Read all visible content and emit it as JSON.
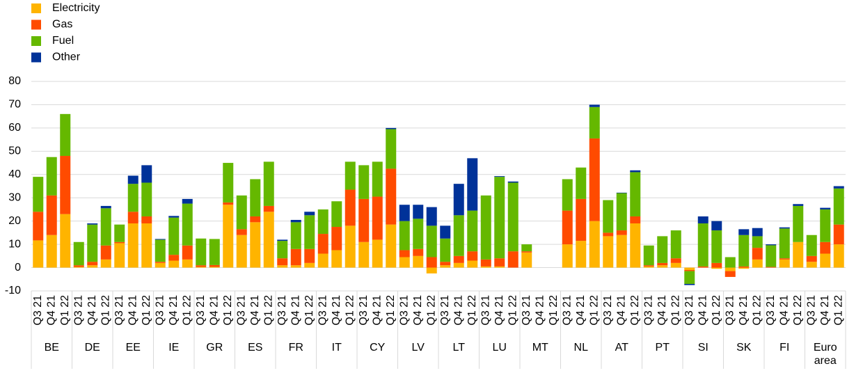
{
  "chart_data": {
    "type": "stacked-bar",
    "categories": [
      "Q3 21",
      "Q4 21",
      "Q1 22",
      "Q3 21",
      "Q4 21",
      "Q1 22",
      "Q3 21",
      "Q4 21",
      "Q1 22",
      "Q3 21",
      "Q4 21",
      "Q1 22",
      "Q3 21",
      "Q4 21",
      "Q1 22",
      "Q3 21",
      "Q4 21",
      "Q1 22",
      "Q3 21",
      "Q4 21",
      "Q1 22",
      "Q3 21",
      "Q4 21",
      "Q1 22",
      "Q3 21",
      "Q4 21",
      "Q1 22",
      "Q3 21",
      "Q4 21",
      "Q1 22",
      "Q3 21",
      "Q4 21",
      "Q1 22",
      "Q3 21",
      "Q4 21",
      "Q1 22",
      "Q3 21",
      "Q4 21",
      "Q1 22",
      "Q3 21",
      "Q4 21",
      "Q1 22",
      "Q3 21",
      "Q4 21",
      "Q1 22",
      "Q3 21",
      "Q4 21",
      "Q1 22",
      "Q3 21",
      "Q4 21",
      "Q1 22",
      "Q3 21",
      "Q4 21",
      "Q1 22",
      "Q3 21",
      "Q4 21",
      "Q1 22",
      "Q3 21",
      "Q4 21",
      "Q1 22"
    ],
    "groups": [
      "BE",
      "DE",
      "EE",
      "IE",
      "GR",
      "ES",
      "FR",
      "IT",
      "CY",
      "LV",
      "LT",
      "LU",
      "MT",
      "NL",
      "AT",
      "PT",
      "SI",
      "SK",
      "FI",
      "Euro area"
    ],
    "series": [
      {
        "name": "Electricity",
        "color": "#ffb400",
        "values": [
          11.7,
          14,
          23,
          0.3,
          1,
          3.5,
          10.5,
          19,
          19,
          2,
          3,
          3.5,
          0.3,
          0.3,
          27,
          14,
          19.5,
          24,
          1,
          1,
          2,
          6,
          7.5,
          18,
          11,
          12,
          18.5,
          4.5,
          5,
          -2.5,
          1,
          2,
          3,
          0.5,
          0.5,
          0,
          6.5,
          null,
          null,
          10,
          11.5,
          20,
          13.5,
          14,
          19,
          0.5,
          1,
          2,
          -1,
          0,
          -0.5,
          -1.5,
          -0.5,
          3.5,
          0,
          3.5,
          11,
          2.5,
          6,
          10
        ]
      },
      {
        "name": "Gas",
        "color": "#ff4b00",
        "values": [
          12.3,
          17,
          25,
          0.7,
          1.5,
          6,
          0.5,
          5,
          3,
          0.5,
          2.5,
          6,
          0.7,
          0.8,
          1,
          2.5,
          2.5,
          2.5,
          3,
          7,
          6,
          8.5,
          10,
          15.5,
          18.5,
          18.5,
          24,
          3,
          3,
          4.5,
          1.5,
          3,
          4,
          3,
          3.5,
          7,
          0.5,
          null,
          null,
          14.5,
          18,
          35.5,
          1.5,
          2,
          3,
          0.5,
          1,
          2,
          -0.5,
          0.5,
          2,
          -2.5,
          0.5,
          5,
          0.3,
          0.5,
          0,
          2.5,
          5,
          8.5
        ]
      },
      {
        "name": "Fuel",
        "color": "#65b800",
        "values": [
          15,
          16.5,
          18,
          10,
          16,
          16,
          7.5,
          12,
          14.5,
          9.5,
          16,
          18,
          11.5,
          11.2,
          17,
          14.5,
          16,
          19,
          7.5,
          11.5,
          14.5,
          10.5,
          11,
          12,
          14.5,
          15,
          17,
          12.5,
          13,
          13.5,
          10,
          17.5,
          17.5,
          27.5,
          35,
          29.5,
          3,
          null,
          null,
          13.5,
          13.5,
          13.5,
          14,
          16,
          19,
          8.5,
          11.5,
          12,
          -5.5,
          18.5,
          14,
          4.5,
          13.5,
          5,
          9.3,
          12.8,
          15.5,
          9,
          14,
          15.5
        ]
      },
      {
        "name": "Other",
        "color": "#003299",
        "values": [
          0,
          0,
          0,
          0,
          0.5,
          1,
          0,
          3.5,
          7.5,
          0.3,
          0.7,
          2,
          0,
          0,
          0,
          0,
          0,
          0,
          0.5,
          1,
          1.5,
          0,
          0,
          0,
          0,
          0,
          0.5,
          7,
          6,
          8,
          5.5,
          13.5,
          22.5,
          0,
          0.3,
          0.5,
          0,
          null,
          null,
          0,
          0,
          1,
          0,
          0.2,
          0.8,
          0,
          0,
          0,
          -0.5,
          3,
          4,
          0,
          2.5,
          3.5,
          0.4,
          0.5,
          0.8,
          0,
          0.7,
          1
        ]
      }
    ],
    "ylim": [
      -10,
      80
    ],
    "yticks": [
      -10,
      0,
      10,
      20,
      30,
      40,
      50,
      60,
      70,
      80
    ],
    "grid": true
  }
}
